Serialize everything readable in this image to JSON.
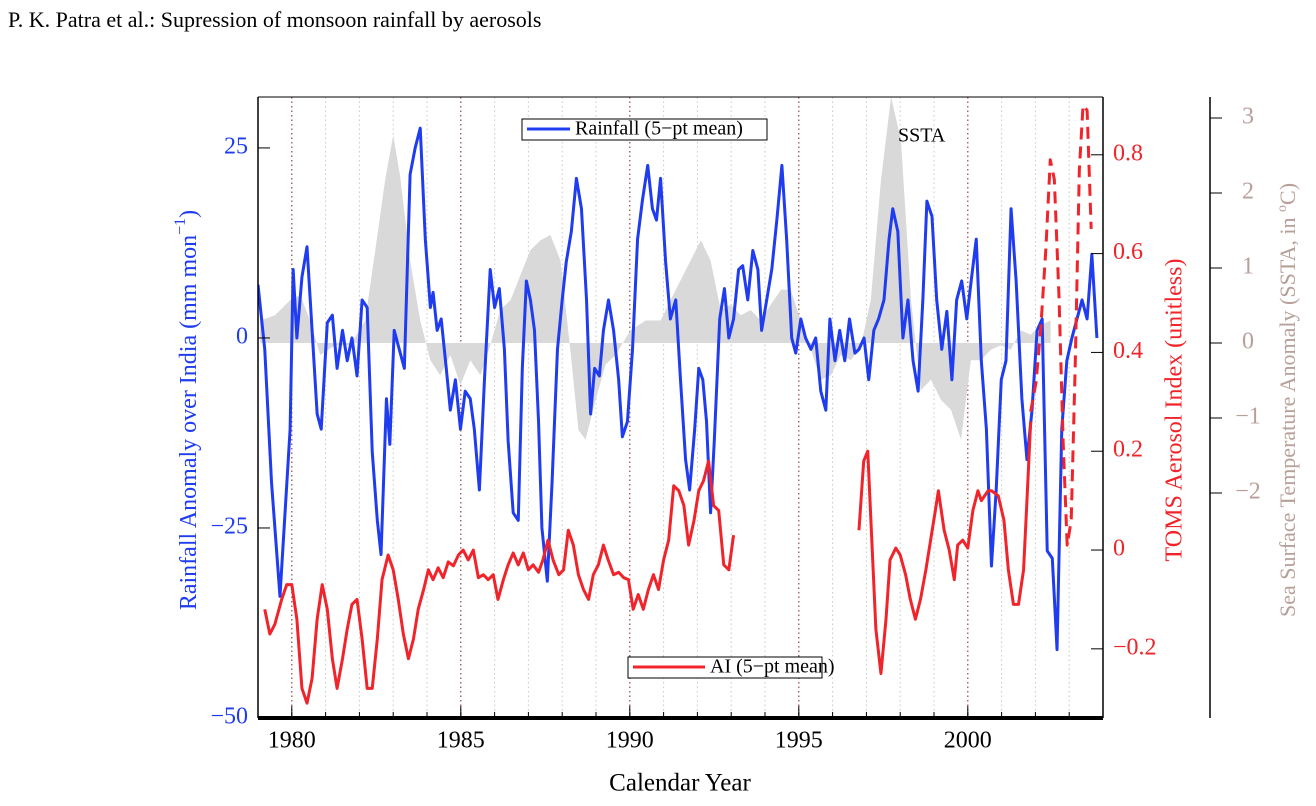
{
  "chart_data": {
    "type": "line",
    "header": "P. K. Patra et al.: Supression of monsoon rainfall by aerosols",
    "xlabel": "Calendar Year",
    "ylabel_parts": [
      "Rainfall Anomaly over India (mm mon",
      "−1",
      ")"
    ],
    "y2label": "TOMS Aerosol Index (unitless)",
    "y3label_parts": [
      "Sea Surface Temperature Anomaly (SSTA, in ",
      "o",
      "C)"
    ],
    "xlim": [
      1979,
      2004
    ],
    "xticks": [
      1980,
      1985,
      1990,
      1995,
      2000
    ],
    "xminorticks": [
      1979,
      1980,
      1981,
      1982,
      1983,
      1984,
      1985,
      1986,
      1987,
      1988,
      1989,
      1990,
      1991,
      1992,
      1993,
      1994,
      1995,
      1996,
      1997,
      1998,
      1999,
      2000,
      2001,
      2002,
      2003,
      2004
    ],
    "ylim": [
      -50,
      31.7
    ],
    "yticks": [
      {
        "value": -50,
        "label": "−50"
      },
      {
        "value": -25,
        "label": "−25"
      },
      0,
      25
    ],
    "y2lim": [
      -0.34,
      0.917
    ],
    "y2ticks": [
      {
        "value": -0.2,
        "label": "−0.2"
      },
      0,
      0.2,
      0.4,
      0.6,
      0.8
    ],
    "y3lim": [
      -5,
      3.28
    ],
    "y3ticks": [
      {
        "value": -2,
        "label": "−2"
      },
      {
        "value": -1,
        "label": "−1"
      },
      0,
      1,
      2,
      3
    ],
    "grid": true,
    "series": [
      {
        "name": "SSTA",
        "type": "area",
        "color": "#d9d9d9",
        "axis": "y3",
        "x": [
          1979.06,
          1979.5,
          1979.95,
          1980.25,
          1980.54,
          1980.84,
          1981.28,
          1981.73,
          1982.17,
          1982.47,
          1982.76,
          1983.0,
          1983.2,
          1983.5,
          1983.8,
          1984.1,
          1984.39,
          1984.69,
          1984.99,
          1985.28,
          1985.58,
          1985.87,
          1986.17,
          1986.47,
          1986.76,
          1987.06,
          1987.36,
          1987.65,
          1987.95,
          1988.24,
          1988.48,
          1988.69,
          1988.99,
          1989.28,
          1989.58,
          1990.02,
          1990.47,
          1990.91,
          1991.36,
          1991.8,
          1992.1,
          1992.39,
          1992.69,
          1992.99,
          1993.28,
          1993.58,
          1993.87,
          1994.17,
          1994.47,
          1994.76,
          1995.06,
          1995.36,
          1995.65,
          1995.95,
          1996.24,
          1996.54,
          1996.84,
          1997.13,
          1997.43,
          1997.73,
          1998.02,
          1998.32,
          1998.61,
          1998.91,
          1999.21,
          1999.5,
          1999.8,
          2000.09,
          2000.39,
          2000.68,
          2000.98,
          2001.27,
          2001.57,
          2001.86,
          2002.16,
          2002.45
        ],
        "values": [
          0.3,
          0.37,
          0.57,
          0.64,
          0.3,
          -0.16,
          -0.03,
          -0.03,
          0.3,
          1.24,
          2.17,
          2.77,
          2.24,
          1.1,
          0.3,
          -0.23,
          -0.43,
          -0.16,
          -0.56,
          -0.23,
          -0.43,
          -0.03,
          0.44,
          0.57,
          0.9,
          1.24,
          1.37,
          1.44,
          1.1,
          -0.09,
          -1.16,
          -1.29,
          -0.76,
          -0.29,
          -0.16,
          0.17,
          0.3,
          0.3,
          0.71,
          1.1,
          1.37,
          1.1,
          0.44,
          0.51,
          0.37,
          0.44,
          0.3,
          0.51,
          0.71,
          0.71,
          0.3,
          -0.09,
          -0.49,
          -0.43,
          -0.16,
          -0.23,
          -0.03,
          0.57,
          2.17,
          3.28,
          2.71,
          0.57,
          -0.63,
          -0.49,
          -0.76,
          -0.89,
          -1.29,
          -0.23,
          -0.23,
          -0.09,
          -0.03,
          -0.09,
          0.17,
          0.11,
          0.24,
          0.3
        ]
      },
      {
        "name": "Rainfall (5−pt mean)",
        "color": "#1f3cf0",
        "x": [
          1979.0,
          1979.2,
          1979.4,
          1979.65,
          1979.95,
          1980.04,
          1980.15,
          1980.3,
          1980.45,
          1980.6,
          1980.75,
          1980.87,
          1981.05,
          1981.2,
          1981.34,
          1981.5,
          1981.64,
          1981.78,
          1981.93,
          1982.08,
          1982.23,
          1982.38,
          1982.53,
          1982.64,
          1982.8,
          1982.9,
          1983.03,
          1983.18,
          1983.33,
          1983.5,
          1983.65,
          1983.8,
          1983.95,
          1984.1,
          1984.18,
          1984.3,
          1984.42,
          1984.57,
          1984.69,
          1984.84,
          1984.99,
          1985.13,
          1985.28,
          1985.4,
          1985.55,
          1985.7,
          1985.87,
          1986.0,
          1986.14,
          1986.29,
          1986.4,
          1986.55,
          1986.7,
          1986.82,
          1986.94,
          1987.06,
          1987.18,
          1987.3,
          1987.4,
          1987.56,
          1987.7,
          1987.86,
          1988.0,
          1988.12,
          1988.27,
          1988.42,
          1988.57,
          1988.72,
          1988.84,
          1988.96,
          1989.1,
          1989.22,
          1989.37,
          1989.52,
          1989.67,
          1989.78,
          1989.93,
          1990.08,
          1990.23,
          1990.37,
          1990.53,
          1990.67,
          1990.79,
          1990.91,
          1991.06,
          1991.2,
          1991.36,
          1991.5,
          1991.65,
          1991.77,
          1991.92,
          1992.04,
          1992.16,
          1992.27,
          1992.39,
          1992.5,
          1992.66,
          1992.8,
          1992.93,
          1993.07,
          1993.22,
          1993.34,
          1993.49,
          1993.64,
          1993.79,
          1993.9,
          1994.05,
          1994.2,
          1994.35,
          1994.5,
          1994.64,
          1994.79,
          1994.91,
          1995.06,
          1995.2,
          1995.36,
          1995.5,
          1995.65,
          1995.8,
          1995.92,
          1996.07,
          1996.21,
          1996.36,
          1996.5,
          1996.66,
          1996.78,
          1996.93,
          1997.07,
          1997.22,
          1997.36,
          1997.52,
          1997.67,
          1997.78,
          1997.93,
          1998.08,
          1998.23,
          1998.38,
          1998.53,
          1998.67,
          1998.79,
          1998.94,
          1999.08,
          1999.23,
          1999.38,
          1999.53,
          1999.67,
          1999.82,
          1999.97,
          2000.1,
          2000.25,
          2000.4,
          2000.55,
          2000.7,
          2000.84,
          2000.99,
          2001.13,
          2001.28,
          2001.43,
          2001.6,
          2001.75,
          2001.9,
          2002.05,
          2002.2,
          2002.35,
          2002.5,
          2002.64,
          2002.78,
          2002.93,
          2003.08,
          2003.23,
          2003.38,
          2003.53,
          2003.67,
          2003.82
        ],
        "values": [
          7,
          -1.5,
          -19,
          -34,
          -12,
          9,
          0,
          8,
          12,
          1,
          -10,
          -12,
          2,
          3,
          -4,
          1,
          -3,
          0,
          -5,
          5,
          4,
          -15,
          -24,
          -28.5,
          -8,
          -14,
          1,
          -1.5,
          -4,
          21.5,
          25,
          27.6,
          13,
          4,
          6,
          1,
          2.5,
          -4,
          -9.5,
          -5.5,
          -12,
          -7,
          -8,
          -12,
          -20,
          -5.5,
          9,
          4,
          6.5,
          -1.5,
          -13.5,
          -23,
          -24,
          -4,
          7.5,
          5,
          1,
          -11,
          -25,
          -32,
          -19,
          -1.5,
          5,
          10,
          14,
          21,
          17,
          5,
          -10,
          -4,
          -5,
          1,
          5,
          1,
          -5.5,
          -13,
          -11,
          -1.5,
          13,
          18,
          22.7,
          17,
          15.5,
          21,
          10,
          2.5,
          5,
          -5.5,
          -16,
          -20,
          -12,
          -4,
          -5.5,
          -11,
          -23,
          -13.5,
          2.5,
          6.5,
          0,
          2.5,
          9,
          9.5,
          5,
          11.5,
          9,
          1,
          5,
          9,
          15.5,
          22.7,
          13,
          0,
          -2,
          2.5,
          0,
          -1.5,
          0,
          -7,
          -9.5,
          2.5,
          -3,
          1,
          -3,
          2.5,
          -2,
          -1.5,
          0,
          -5.5,
          1,
          2.5,
          5,
          13,
          17,
          14,
          0,
          5,
          -3,
          -7,
          5,
          18,
          16,
          5,
          -1.5,
          3.5,
          -5.5,
          5,
          7.5,
          2.5,
          7.5,
          13,
          -3,
          -12,
          -30,
          -20,
          -5.5,
          -3,
          17,
          7.5,
          -8,
          -16,
          -9.5,
          1,
          2.5,
          -28,
          -29,
          -41,
          -12,
          -3,
          0,
          2.5,
          5,
          2.5,
          11,
          0
        ]
      },
      {
        "name": "AI (5−pt mean)",
        "color": "#f0242a",
        "axis": "y2",
        "x": [
          1979.2,
          1979.35,
          1979.5,
          1979.7,
          1979.85,
          1980.0,
          1980.15,
          1980.3,
          1980.45,
          1980.6,
          1980.75,
          1980.9,
          1981.05,
          1981.2,
          1981.34,
          1981.5,
          1981.64,
          1981.78,
          1981.93,
          1982.08,
          1982.23,
          1982.38,
          1982.53,
          1982.67,
          1982.85,
          1983.0,
          1983.15,
          1983.3,
          1983.45,
          1983.6,
          1983.74,
          1983.9,
          1984.04,
          1984.18,
          1984.33,
          1984.48,
          1984.63,
          1984.78,
          1984.93,
          1985.07,
          1985.22,
          1985.37,
          1985.52,
          1985.67,
          1985.81,
          1985.96,
          1986.1,
          1986.26,
          1986.4,
          1986.55,
          1986.7,
          1986.85,
          1987.0,
          1987.14,
          1987.3,
          1987.43,
          1987.58,
          1987.73,
          1987.9,
          1988.04,
          1988.18,
          1988.33,
          1988.48,
          1988.63,
          1988.78,
          1988.92,
          1989.07,
          1989.22,
          1989.36,
          1989.52,
          1989.67,
          1989.82,
          1989.96,
          1990.1,
          1990.25,
          1990.4,
          1990.55,
          1990.7,
          1990.85,
          1991.0,
          1991.15,
          1991.3,
          1991.45,
          1991.6,
          1991.74,
          1991.9,
          1992.04,
          1992.18,
          1992.33,
          1992.48,
          1992.63,
          1992.78,
          1992.93,
          1993.07,
          1995.0,
          1996.78,
          1996.92,
          1997.04,
          1997.16,
          1997.28,
          1997.43,
          1997.58,
          1997.7,
          1997.87,
          1998.0,
          1998.16,
          1998.3,
          1998.45,
          1998.6,
          1998.76,
          1998.9,
          1999.04,
          1999.13,
          1999.3,
          1999.45,
          1999.6,
          1999.7,
          1999.85,
          2000.0,
          2000.15,
          2000.3,
          2000.4,
          2000.6,
          2000.7,
          2000.9,
          2001.07,
          2001.2,
          2001.35,
          2001.5,
          2001.65,
          2001.75,
          2001.86
        ],
        "values": [
          -0.12,
          -0.17,
          -0.15,
          -0.1,
          -0.07,
          -0.07,
          -0.14,
          -0.28,
          -0.31,
          -0.26,
          -0.14,
          -0.07,
          -0.12,
          -0.22,
          -0.28,
          -0.22,
          -0.16,
          -0.11,
          -0.1,
          -0.18,
          -0.28,
          -0.28,
          -0.18,
          -0.06,
          -0.01,
          -0.04,
          -0.1,
          -0.17,
          -0.22,
          -0.18,
          -0.12,
          -0.08,
          -0.04,
          -0.06,
          -0.036,
          -0.056,
          -0.024,
          -0.032,
          -0.01,
          0,
          -0.02,
          0,
          -0.056,
          -0.05,
          -0.06,
          -0.05,
          -0.1,
          -0.06,
          -0.03,
          -0.006,
          -0.03,
          -0.006,
          -0.04,
          -0.03,
          -0.045,
          -0.02,
          0.02,
          -0.02,
          -0.05,
          -0.04,
          0.04,
          0.01,
          -0.05,
          -0.08,
          -0.1,
          -0.05,
          -0.03,
          0.01,
          -0.02,
          -0.05,
          -0.045,
          -0.056,
          -0.06,
          -0.12,
          -0.09,
          -0.12,
          -0.08,
          -0.05,
          -0.08,
          -0.02,
          0.02,
          0.13,
          0.12,
          0.09,
          0.01,
          0.06,
          0.12,
          0.14,
          0.18,
          0.09,
          0.08,
          -0.03,
          -0.04,
          0.03,
          null,
          0.04,
          0.18,
          0.2,
          0.02,
          -0.16,
          -0.25,
          -0.14,
          -0.02,
          0.004,
          -0.01,
          -0.05,
          -0.1,
          -0.14,
          -0.1,
          -0.04,
          0.02,
          0.08,
          0.12,
          0.04,
          0,
          -0.06,
          0.01,
          0.02,
          0.004,
          0.08,
          0.12,
          0.1,
          0.12,
          0.12,
          0.11,
          0.06,
          -0.04,
          -0.11,
          -0.11,
          -0.04,
          0.1,
          0.26
        ]
      },
      {
        "color": "#f0242a",
        "axis": "y2",
        "dash": true,
        "x": [
          2001.86,
          2002.02,
          2002.16,
          2002.31,
          2002.44,
          2002.56,
          2002.7,
          2002.82,
          2002.94,
          2003.06,
          2003.18,
          2003.3,
          2003.41,
          2003.53,
          2003.65
        ],
        "values": [
          0.28,
          0.34,
          0.45,
          0.61,
          0.79,
          0.75,
          0.51,
          0.22,
          0.01,
          0.06,
          0.38,
          0.77,
          0.9,
          0.89,
          0.65
        ]
      }
    ]
  }
}
